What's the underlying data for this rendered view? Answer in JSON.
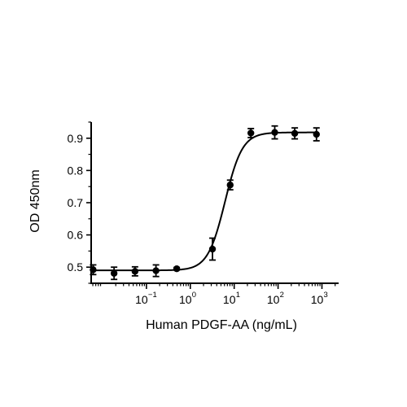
{
  "chart_data": {
    "type": "scatter",
    "xlabel": "Human PDGF-AA (ng/mL)",
    "ylabel": "OD 450nm",
    "x_scale": "log",
    "xlim": [
      0.0055,
      2400
    ],
    "ylim": [
      0.45,
      0.95
    ],
    "x_ticks": [
      {
        "value": 0.1,
        "base": "10",
        "exp": "−1"
      },
      {
        "value": 1,
        "base": "10",
        "exp": "0"
      },
      {
        "value": 10,
        "base": "10",
        "exp": "1"
      },
      {
        "value": 100,
        "base": "10",
        "exp": "2"
      },
      {
        "value": 1000,
        "base": "10",
        "exp": "3"
      }
    ],
    "y_ticks": [
      {
        "value": 0.5,
        "label": "0.5"
      },
      {
        "value": 0.6,
        "label": "0.6"
      },
      {
        "value": 0.7,
        "label": "0.7"
      },
      {
        "value": 0.8,
        "label": "0.8"
      },
      {
        "value": 0.9,
        "label": "0.9"
      }
    ],
    "grid": false,
    "points": [
      {
        "x": 0.0061,
        "y": 0.492,
        "err": 0.015
      },
      {
        "x": 0.0183,
        "y": 0.481,
        "err": 0.019
      },
      {
        "x": 0.0549,
        "y": 0.487,
        "err": 0.014
      },
      {
        "x": 0.165,
        "y": 0.489,
        "err": 0.018
      },
      {
        "x": 0.49,
        "y": 0.495,
        "err": 0.004
      },
      {
        "x": 3.2,
        "y": 0.556,
        "err": 0.034
      },
      {
        "x": 8.1,
        "y": 0.755,
        "err": 0.015
      },
      {
        "x": 24,
        "y": 0.916,
        "err": 0.014
      },
      {
        "x": 84,
        "y": 0.918,
        "err": 0.02
      },
      {
        "x": 240,
        "y": 0.915,
        "err": 0.017
      },
      {
        "x": 750,
        "y": 0.912,
        "err": 0.02
      }
    ],
    "fit": {
      "model": "4PL",
      "bottom": 0.49,
      "top": 0.918,
      "ec50": 6.2,
      "hill": 2.2
    }
  }
}
